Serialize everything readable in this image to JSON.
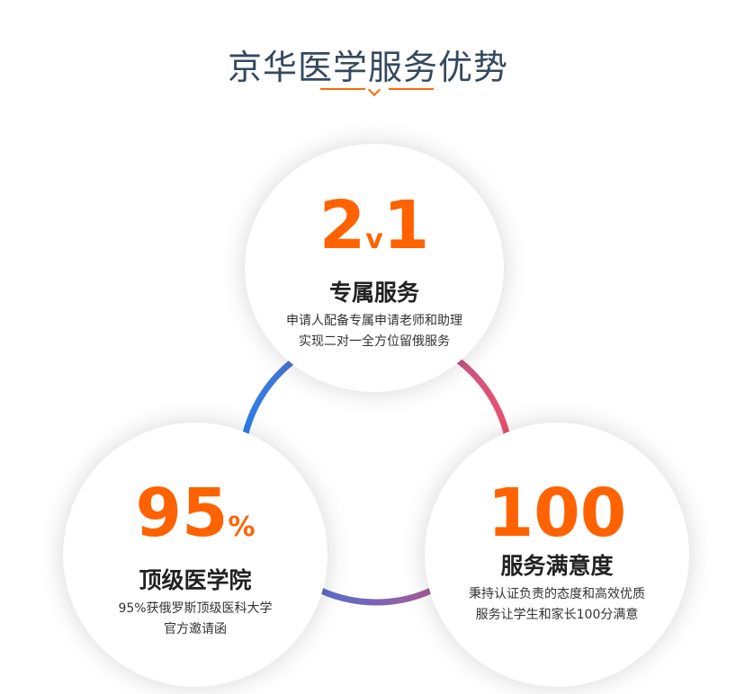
{
  "title": "京华医学服务优势",
  "colors": {
    "accent": "#ff6200",
    "ring_start": "#2a7fe8",
    "ring_mid": "#7b63b5",
    "ring_end": "#f0506a"
  },
  "cards": [
    {
      "num": "2",
      "num_small": "v",
      "num2": "1",
      "heading": "专属服务",
      "lines": [
        "申请人配备专属申请老师和助理",
        "实现二对一全方位留俄服务"
      ]
    },
    {
      "num": "95",
      "num_small": "%",
      "num2": "",
      "heading": "顶级医学院",
      "lines": [
        "95%获俄罗斯顶级医科大学",
        "官方邀请函"
      ]
    },
    {
      "num": "100",
      "num_small": "",
      "num2": "",
      "heading": "服务满意度",
      "lines": [
        "秉持认证负责的态度和高效优质",
        "服务让学生和家长100分满意"
      ]
    }
  ]
}
